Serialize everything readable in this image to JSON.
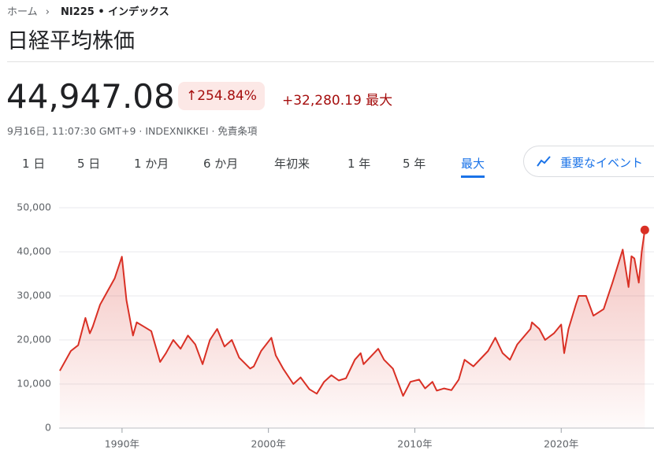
{
  "header": {
    "breadcrumb": [
      "ホーム",
      "NI225 • インデックス"
    ],
    "title": "日経平均株価",
    "price": "44,947.08",
    "change_pct": "↑254.84%",
    "change_abs": "+32,280.19",
    "change_period": "最大",
    "meta": "9月16日, 11:07:30 GMT+9 · INDEXNIKKEI · 免責条項"
  },
  "tabs": [
    "1 日",
    "5 日",
    "1 か月",
    "6 か月",
    "年初来",
    "1 年",
    "5 年",
    "最大"
  ],
  "events_button": "重要なイベント",
  "chart_data": {
    "type": "line",
    "x": [
      1985.75,
      1986.5,
      1987.0,
      1987.5,
      1987.8,
      1988.0,
      1988.5,
      1989.0,
      1989.5,
      1989.99,
      1990.3,
      1990.75,
      1991.0,
      1991.5,
      1992.0,
      1992.6,
      1993.0,
      1993.5,
      1994.0,
      1994.5,
      1995.0,
      1995.5,
      1996.0,
      1996.5,
      1997.0,
      1997.5,
      1998.0,
      1998.75,
      1999.0,
      1999.5,
      2000.2,
      2000.5,
      2001.0,
      2001.7,
      2002.2,
      2002.8,
      2003.3,
      2003.8,
      2004.3,
      2004.8,
      2005.3,
      2005.9,
      2006.3,
      2006.5,
      2007.5,
      2007.9,
      2008.5,
      2009.2,
      2009.7,
      2010.3,
      2010.7,
      2011.2,
      2011.5,
      2012.0,
      2012.5,
      2013.0,
      2013.4,
      2014.0,
      2015.0,
      2015.5,
      2016.0,
      2016.5,
      2017.0,
      2017.9,
      2018.0,
      2018.5,
      2018.9,
      2019.5,
      2020.0,
      2020.2,
      2020.5,
      2021.0,
      2021.2,
      2021.7,
      2022.2,
      2022.9,
      2023.5,
      2024.2,
      2024.6,
      2024.8,
      2025.0,
      2025.3,
      2025.5,
      2025.71
    ],
    "series": [
      {
        "color": "#d93025",
        "values": [
          13000,
          17500,
          18800,
          25000,
          21500,
          23000,
          28000,
          31000,
          34000,
          38900,
          29000,
          21000,
          24000,
          23000,
          22000,
          15000,
          17000,
          20000,
          18000,
          21000,
          19000,
          14500,
          20000,
          22500,
          18500,
          20000,
          16000,
          13500,
          14000,
          17500,
          20500,
          16500,
          13500,
          10000,
          11500,
          8800,
          7800,
          10500,
          12000,
          10800,
          11300,
          15500,
          17000,
          14500,
          18000,
          15500,
          13500,
          7300,
          10500,
          11000,
          9000,
          10500,
          8500,
          9000,
          8600,
          11000,
          15500,
          14000,
          17500,
          20500,
          17000,
          15500,
          19000,
          22500,
          24000,
          22500,
          20000,
          21500,
          23500,
          17000,
          22500,
          28000,
          30000,
          30000,
          25500,
          27000,
          33000,
          40500,
          32000,
          39000,
          38500,
          33000,
          40000,
          44947.08
        ]
      }
    ],
    "xlim": [
      1985.7,
      2025.8
    ],
    "xticks": [
      {
        "value": 1990,
        "label": "1990年"
      },
      {
        "value": 2000,
        "label": "2000年"
      },
      {
        "value": 2010,
        "label": "2010年"
      },
      {
        "value": 2020,
        "label": "2020年"
      }
    ],
    "ylim": [
      0,
      50000
    ],
    "yticks": [
      0,
      {
        "value": 10000,
        "label": "10,000"
      },
      {
        "value": 20000,
        "label": "20,000"
      },
      {
        "value": 30000,
        "label": "30,000"
      },
      {
        "value": 40000,
        "label": "40,000"
      },
      {
        "value": 50000,
        "label": "50,000"
      }
    ],
    "grid": true
  }
}
